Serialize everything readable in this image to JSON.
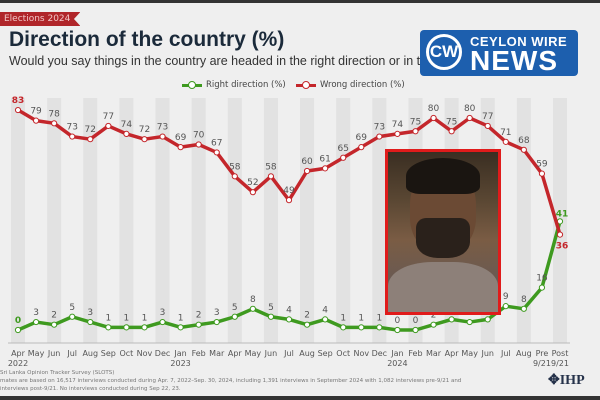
{
  "header": {
    "tag": "Elections 2024",
    "title": "Direction of the country (%)",
    "subtitle": "Would you say things in the country are headed in the right direction or in t"
  },
  "logo": {
    "line1": "CEYLON WIRE",
    "line2": "NEWS",
    "mark": "CW"
  },
  "footer": {
    "line1": "Sri Lanka Opinion Tracker Survey (SLOTS)",
    "line2": "mates are based on 16,517 interviews conducted during Apr. 7, 2022–Sep. 30, 2024, including 1,391 interviews in September 2024 with 1,082 interviews pre-9/21 and",
    "line3": "interviews post-9/21. No interviews conducted during Sep 22, 23.",
    "org": "IHP"
  },
  "chart_data": {
    "type": "line",
    "categories": [
      "Apr",
      "May",
      "Jun",
      "Jul",
      "Aug",
      "Sep",
      "Oct",
      "Nov",
      "Dec",
      "Jan",
      "Feb",
      "Mar",
      "Apr",
      "May",
      "Jun",
      "Jul",
      "Aug",
      "Sep",
      "Oct",
      "Nov",
      "Dec",
      "Jan",
      "Feb",
      "Mar",
      "Apr",
      "May",
      "Jun",
      "Jul",
      "Aug",
      "Pre",
      "Post"
    ],
    "category_sublabels": {
      "0": "2022",
      "9": "2023",
      "21": "2024",
      "29": "9/21",
      "30": "9/21"
    },
    "series": [
      {
        "name": "Right direction (%)",
        "color": "#3e9a1f",
        "values": [
          0,
          3,
          2,
          5,
          3,
          1,
          1,
          1,
          3,
          1,
          2,
          3,
          5,
          8,
          5,
          4,
          2,
          4,
          1,
          1,
          1,
          0,
          0,
          2,
          4,
          3,
          4,
          9,
          8,
          16,
          41
        ]
      },
      {
        "name": "Wrong direction (%)",
        "color": "#c4262b",
        "values": [
          83,
          79,
          78,
          73,
          72,
          77,
          74,
          72,
          73,
          69,
          70,
          67,
          58,
          52,
          58,
          49,
          60,
          61,
          65,
          69,
          73,
          74,
          75,
          80,
          75,
          80,
          77,
          71,
          68,
          59,
          36
        ]
      }
    ],
    "ylim": [
      0,
      85
    ],
    "legend": "top-center",
    "grid": "alternating vertical bands"
  }
}
